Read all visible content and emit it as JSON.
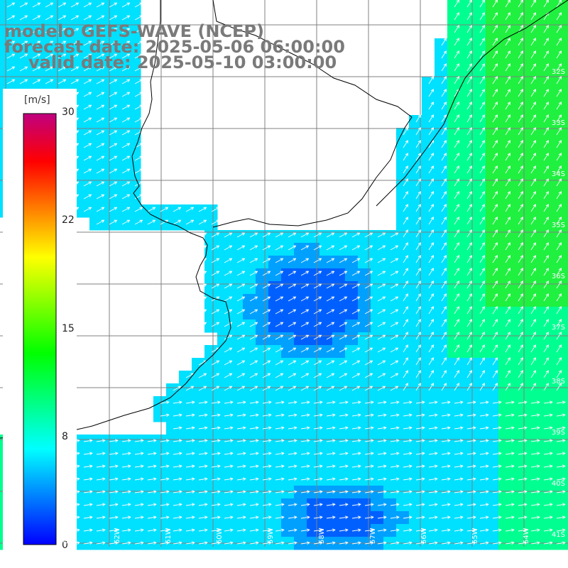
{
  "title": {
    "line1": "modelo GEFS-WAVE (NCEP)",
    "line2": "forecast date: 2025-05-06 06:00:00",
    "line3": "valid date: 2025-05-10 03:00:00"
  },
  "colorbar": {
    "unit": "[m/s]",
    "ticks": [
      "30",
      "22",
      "15",
      "8",
      "0"
    ],
    "tick_values": [
      30,
      22,
      15,
      8,
      0
    ],
    "colors": [
      "#0000ff",
      "#0080ff",
      "#00ffff",
      "#00ff80",
      "#00ff00",
      "#80ff00",
      "#ffff00",
      "#ff8000",
      "#ff0000",
      "#c00080"
    ]
  },
  "map": {
    "ocean_colors": {
      "calm": "#0060ff",
      "low": "#00a0ff",
      "mid": "#00e0ff",
      "high": "#00ff90",
      "strong": "#20f040"
    },
    "land_color": "#ffffff",
    "grid_color": "#808080",
    "arrow_color": "#ffffff",
    "lat_labels": [
      "32S",
      "33S",
      "34S",
      "35S",
      "36S",
      "37S",
      "38S",
      "39S",
      "40S",
      "41S"
    ],
    "lon_labels": [
      "64W",
      "63W",
      "62W",
      "61W",
      "60W",
      "59W",
      "58W",
      "57W",
      "56W",
      "55W",
      "54W"
    ]
  }
}
